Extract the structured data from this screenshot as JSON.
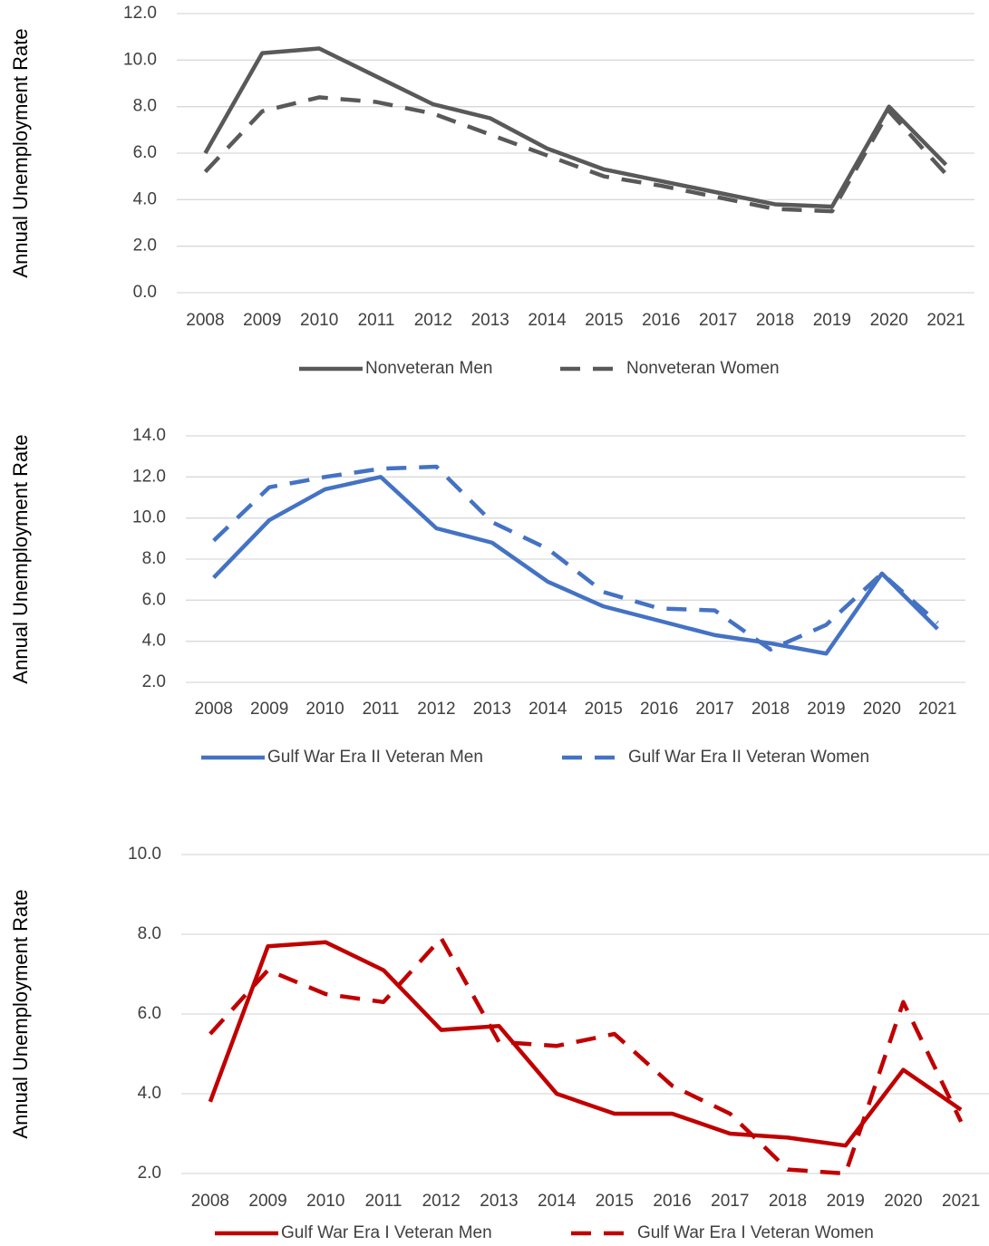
{
  "chart_data": [
    {
      "type": "line",
      "y_label": "Annual Unemployment Rate",
      "categories": [
        "2008",
        "2009",
        "2010",
        "2011",
        "2012",
        "2013",
        "2014",
        "2015",
        "2016",
        "2017",
        "2018",
        "2019",
        "2020",
        "2021"
      ],
      "ylim": [
        0,
        12
      ],
      "yticks": [
        {
          "value": 0,
          "label": "0.0"
        },
        {
          "value": 2,
          "label": "2.0"
        },
        {
          "value": 4,
          "label": "4.0"
        },
        {
          "value": 6,
          "label": "6.0"
        },
        {
          "value": 8,
          "label": "8.0"
        },
        {
          "value": 10,
          "label": "10.0"
        },
        {
          "value": 12,
          "label": "12.0"
        }
      ],
      "grid": true,
      "legend": "bottom",
      "series": [
        {
          "name": "Nonveteran Men",
          "color": "#595959",
          "line_style": "solid",
          "values": [
            6.0,
            10.3,
            10.5,
            9.3,
            8.1,
            7.5,
            6.2,
            5.3,
            4.8,
            4.3,
            3.8,
            3.7,
            8.0,
            5.5
          ]
        },
        {
          "name": "Nonveteran Women",
          "color": "#595959",
          "line_style": "dashed",
          "values": [
            5.2,
            7.8,
            8.4,
            8.2,
            7.7,
            6.8,
            5.9,
            5.0,
            4.6,
            4.1,
            3.6,
            3.5,
            7.8,
            5.1
          ]
        }
      ]
    },
    {
      "type": "line",
      "y_label": "Annual Unemployment Rate",
      "categories": [
        "2008",
        "2009",
        "2010",
        "2011",
        "2012",
        "2013",
        "2014",
        "2015",
        "2016",
        "2017",
        "2018",
        "2019",
        "2020",
        "2021"
      ],
      "ylim": [
        2,
        14
      ],
      "yticks": [
        {
          "value": 2,
          "label": "2.0"
        },
        {
          "value": 4,
          "label": "4.0"
        },
        {
          "value": 6,
          "label": "6.0"
        },
        {
          "value": 8,
          "label": "8.0"
        },
        {
          "value": 10,
          "label": "10.0"
        },
        {
          "value": 12,
          "label": "12.0"
        },
        {
          "value": 14,
          "label": "14.0"
        }
      ],
      "grid": true,
      "legend": "bottom",
      "series": [
        {
          "name": "Gulf War Era II Veteran Men",
          "color": "#4472c4",
          "line_style": "solid",
          "values": [
            7.1,
            9.9,
            11.4,
            12.0,
            9.5,
            8.8,
            6.9,
            5.7,
            5.0,
            4.3,
            3.9,
            3.4,
            7.3,
            4.6
          ]
        },
        {
          "name": "Gulf War Era II Veteran Women",
          "color": "#4472c4",
          "line_style": "dashed",
          "values": [
            8.9,
            11.5,
            12.0,
            12.4,
            12.5,
            9.8,
            8.5,
            6.4,
            5.6,
            5.5,
            3.6,
            4.8,
            7.3,
            4.9
          ]
        }
      ]
    },
    {
      "type": "line",
      "y_label": "Annual Unemployment Rate",
      "categories": [
        "2008",
        "2009",
        "2010",
        "2011",
        "2012",
        "2013",
        "2014",
        "2015",
        "2016",
        "2017",
        "2018",
        "2019",
        "2020",
        "2021"
      ],
      "ylim": [
        2,
        10
      ],
      "yticks": [
        {
          "value": 2,
          "label": "2.0"
        },
        {
          "value": 4,
          "label": "4.0"
        },
        {
          "value": 6,
          "label": "6.0"
        },
        {
          "value": 8,
          "label": "8.0"
        },
        {
          "value": 10,
          "label": "10.0"
        }
      ],
      "grid": true,
      "legend": "bottom",
      "series": [
        {
          "name": "Gulf War Era I Veteran Men",
          "color": "#c00000",
          "line_style": "solid",
          "values": [
            3.8,
            7.7,
            7.8,
            7.1,
            5.6,
            5.7,
            4.0,
            3.5,
            3.5,
            3.0,
            2.9,
            2.7,
            4.6,
            3.6
          ]
        },
        {
          "name": "Gulf War Era I Veteran Women",
          "color": "#c00000",
          "line_style": "dashed",
          "values": [
            5.5,
            7.1,
            6.5,
            6.3,
            7.9,
            5.3,
            5.2,
            5.5,
            4.2,
            3.5,
            2.1,
            2.0,
            6.3,
            3.3
          ]
        }
      ]
    }
  ]
}
